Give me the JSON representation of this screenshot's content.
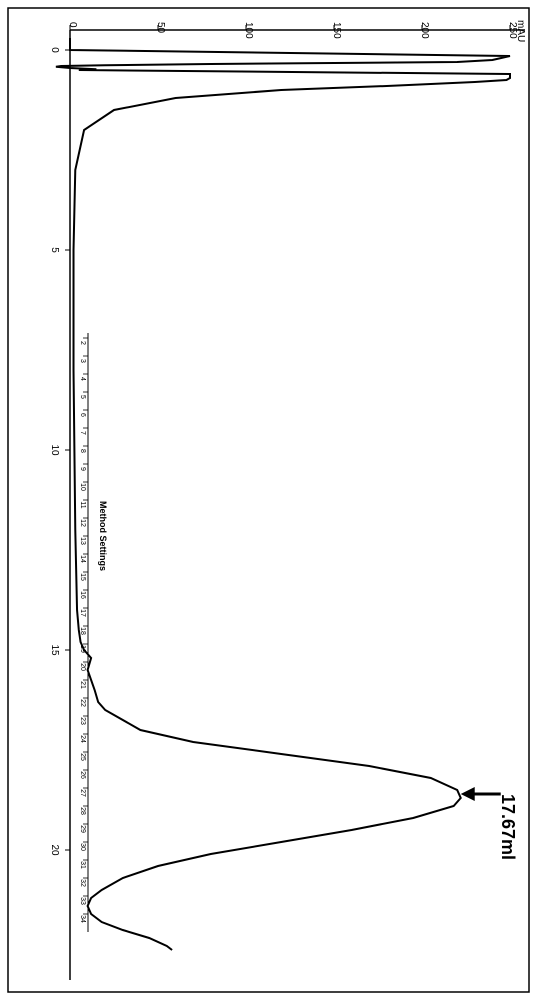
{
  "chart": {
    "type": "chromatogram",
    "orientation": "rotated-90-cw",
    "y_axis": {
      "label": "mAU",
      "ticks": [
        0,
        50,
        100,
        150,
        200,
        250
      ],
      "lim": [
        -10,
        260
      ],
      "label_fontsize": 10,
      "tick_fontsize": 10
    },
    "x_axis": {
      "ticks": [
        0,
        5,
        10,
        15,
        20
      ],
      "lim": [
        -0.5,
        23
      ],
      "tick_fontsize": 10
    },
    "fraction_axis": {
      "label": "Method Settings",
      "ticks": [
        2,
        3,
        4,
        5,
        6,
        7,
        8,
        9,
        10,
        11,
        12,
        13,
        14,
        15,
        16,
        17,
        18,
        19,
        20,
        21,
        22,
        23,
        24,
        25,
        26,
        27,
        28,
        29,
        30,
        31,
        32,
        33,
        34
      ],
      "start_x": 7.2,
      "step_x": 0.45,
      "tick_fontsize": 7,
      "label_fontsize": 9
    },
    "peak_annotation": {
      "label": "17.67ml",
      "x_position": 18.6,
      "fontsize": 18,
      "font_weight": "bold"
    },
    "curve": {
      "color": "#000000",
      "stroke_width": 2,
      "points": [
        [
          -0.3,
          0
        ],
        [
          0,
          0
        ],
        [
          0.15,
          250
        ],
        [
          0.2,
          245
        ],
        [
          0.25,
          240
        ],
        [
          0.3,
          220
        ],
        [
          0.35,
          80
        ],
        [
          0.38,
          20
        ],
        [
          0.4,
          -5
        ],
        [
          0.42,
          -8
        ],
        [
          0.45,
          0
        ],
        [
          0.48,
          15
        ],
        [
          0.5,
          5
        ],
        [
          0.6,
          250
        ],
        [
          0.7,
          250
        ],
        [
          0.75,
          248
        ],
        [
          0.8,
          230
        ],
        [
          0.9,
          180
        ],
        [
          1.0,
          120
        ],
        [
          1.2,
          60
        ],
        [
          1.5,
          25
        ],
        [
          2.0,
          8
        ],
        [
          3.0,
          3
        ],
        [
          5.0,
          2
        ],
        [
          8.0,
          2
        ],
        [
          12.0,
          3
        ],
        [
          14.0,
          4
        ],
        [
          14.5,
          5
        ],
        [
          14.8,
          6
        ],
        [
          15.0,
          8
        ],
        [
          15.2,
          12
        ],
        [
          15.5,
          10
        ],
        [
          16.0,
          14
        ],
        [
          16.3,
          16
        ],
        [
          16.5,
          20
        ],
        [
          17.0,
          40
        ],
        [
          17.3,
          70
        ],
        [
          17.6,
          120
        ],
        [
          17.9,
          170
        ],
        [
          18.2,
          205
        ],
        [
          18.5,
          220
        ],
        [
          18.7,
          222
        ],
        [
          18.9,
          218
        ],
        [
          19.2,
          195
        ],
        [
          19.5,
          160
        ],
        [
          19.8,
          120
        ],
        [
          20.1,
          80
        ],
        [
          20.4,
          50
        ],
        [
          20.7,
          30
        ],
        [
          21.0,
          18
        ],
        [
          21.2,
          12
        ],
        [
          21.4,
          10
        ],
        [
          21.6,
          12
        ],
        [
          21.8,
          18
        ],
        [
          22.0,
          30
        ],
        [
          22.2,
          45
        ],
        [
          22.4,
          55
        ],
        [
          22.5,
          58
        ]
      ]
    },
    "colors": {
      "background": "#ffffff",
      "axis": "#000000",
      "text": "#000000"
    }
  }
}
